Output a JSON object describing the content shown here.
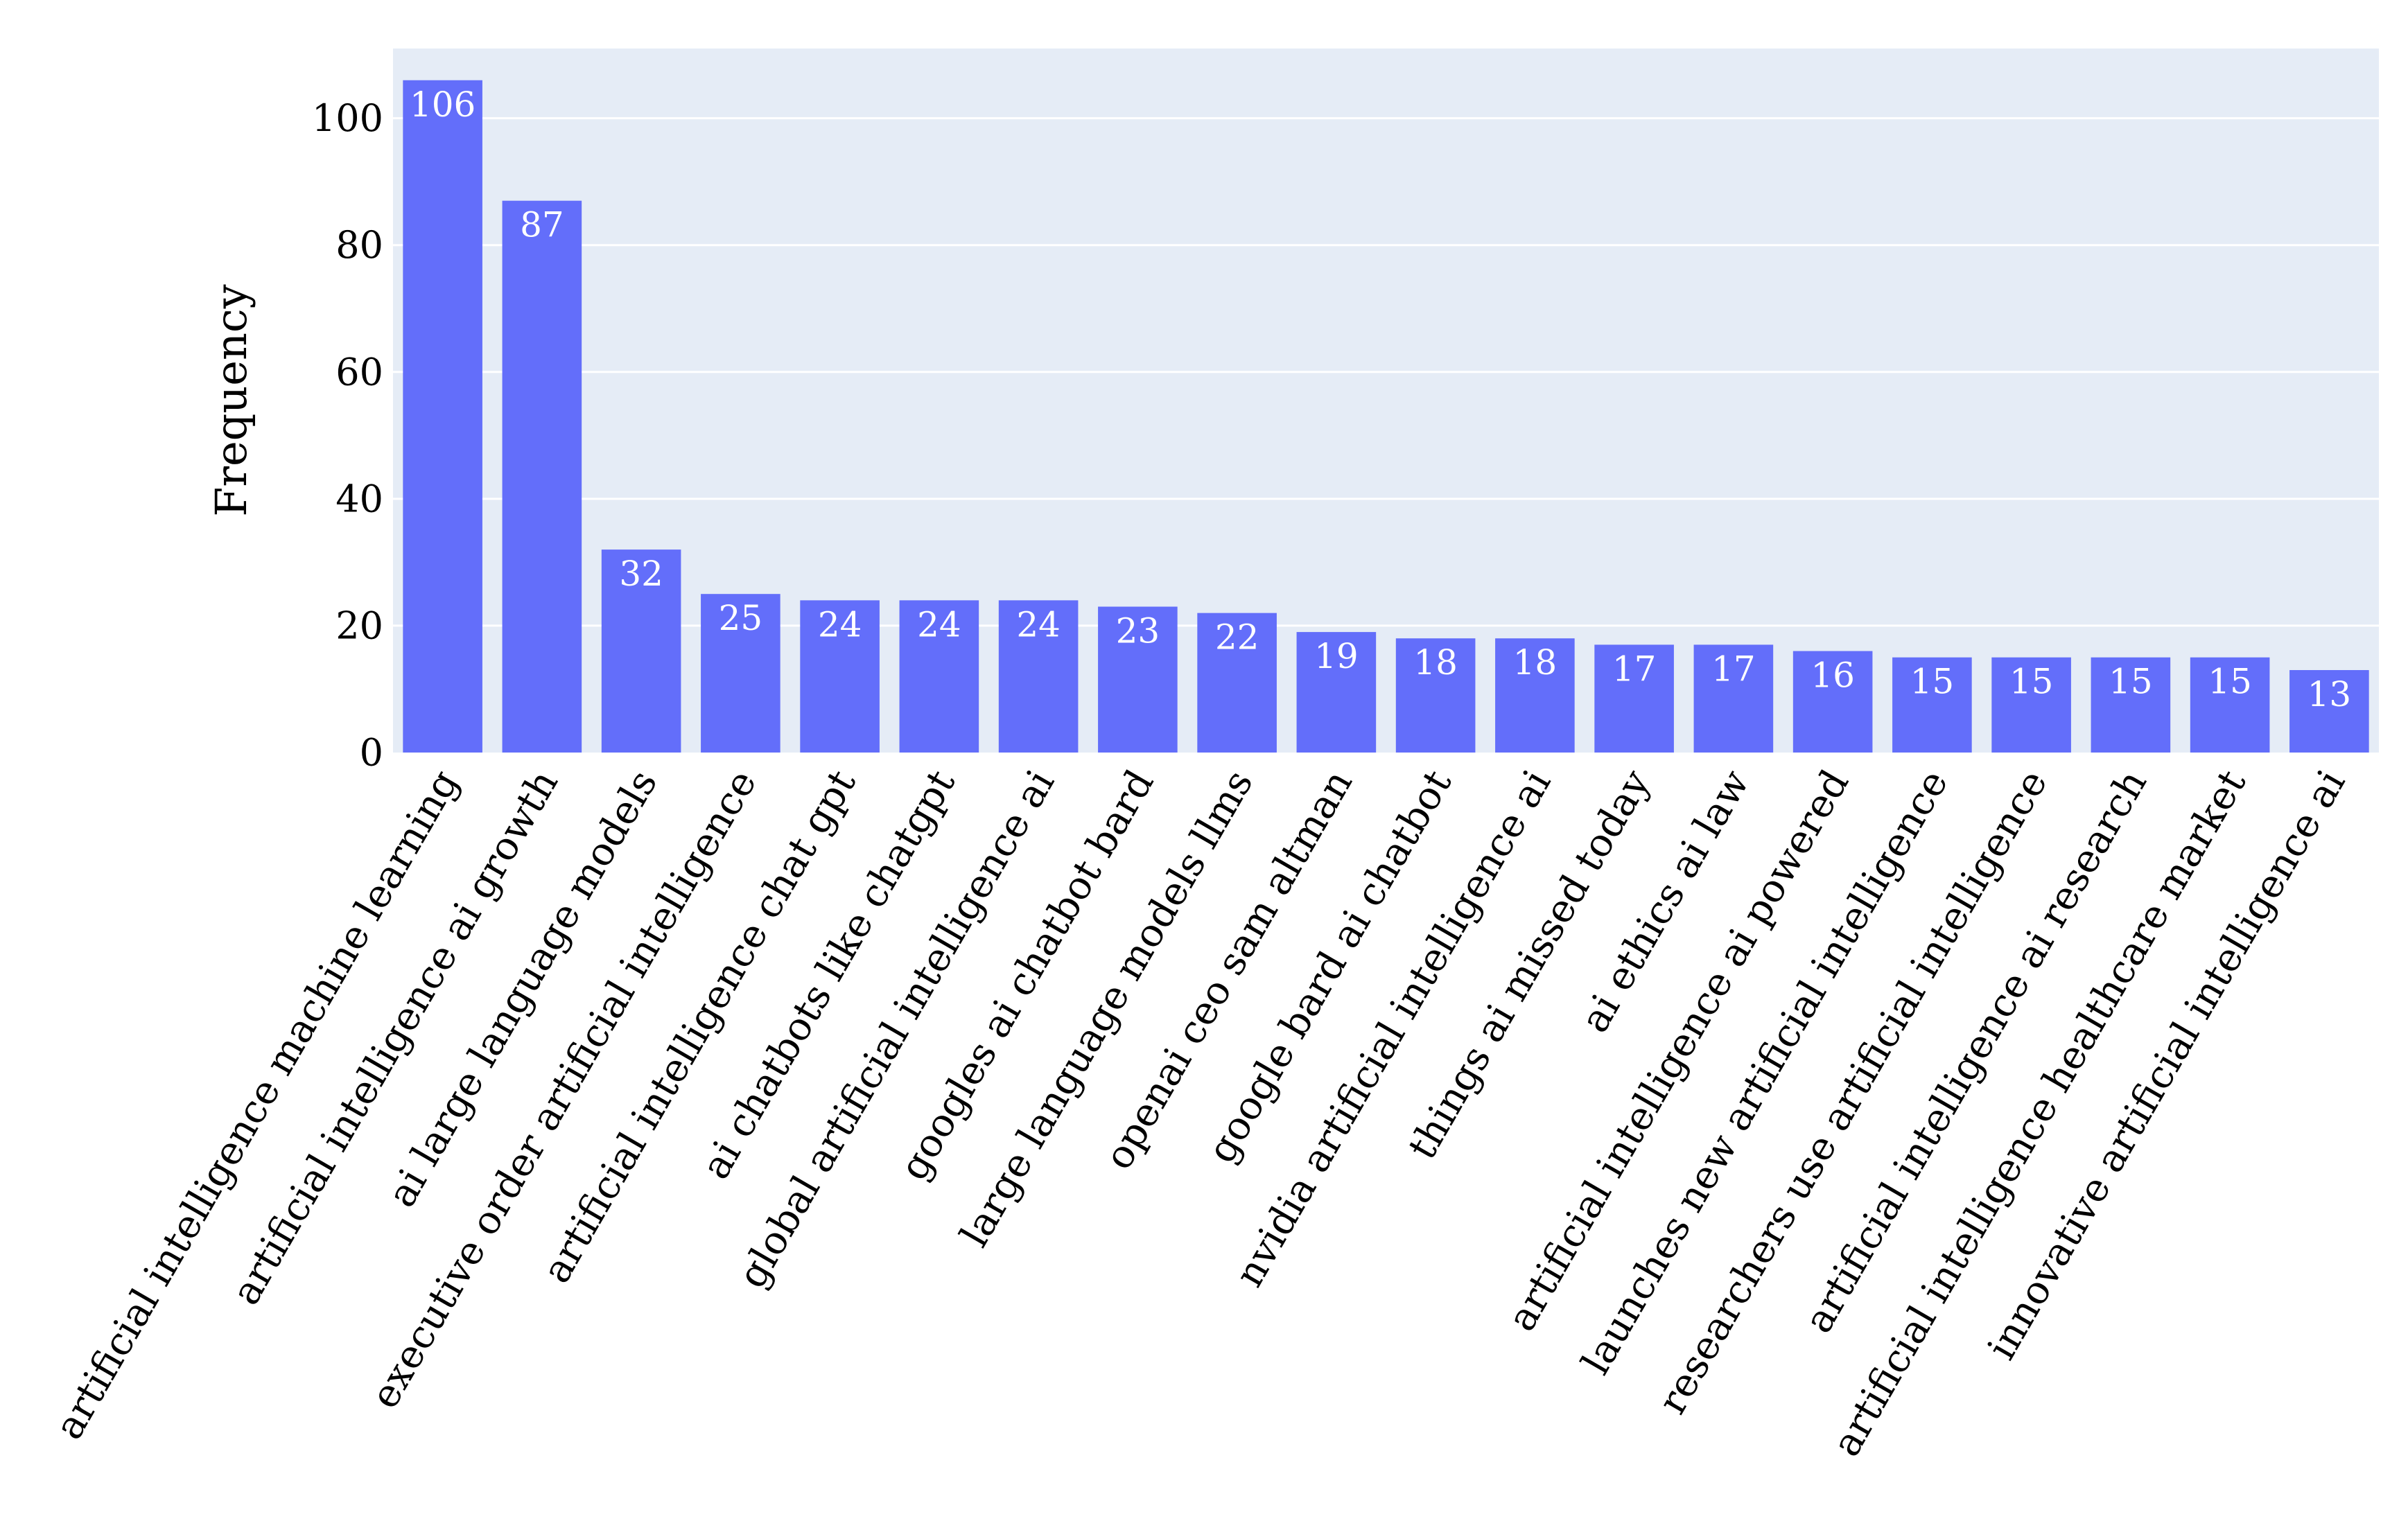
{
  "chart_data": {
    "type": "bar",
    "title": "",
    "xlabel": "",
    "ylabel": "Frequency",
    "ylim": [
      0,
      111
    ],
    "yticks": [
      0,
      20,
      40,
      60,
      80,
      100
    ],
    "grid": true,
    "show_data_labels": true,
    "colors": {
      "bar": "#636efa",
      "plot_background": "#e5ecf6",
      "gridline": "#ffffff",
      "data_label": "#ffffff",
      "text": "#000000"
    },
    "categories": [
      "artificial intelligence machine learning",
      "artificial intelligence ai growth",
      "ai large language models",
      "executive order artificial intelligence",
      "artificial intelligence chat gpt",
      "ai chatbots like chatgpt",
      "global artificial intelligence ai",
      "googles ai chatbot bard",
      "large language models llms",
      "openai ceo sam altman",
      "google bard ai chatbot",
      "nvidia artificial intelligence ai",
      "things ai missed today",
      "ai ethics ai law",
      "artificial intelligence ai powered",
      "launches new artificial intelligence",
      "researchers use artificial intelligence",
      "artificial intelligence ai research",
      "artificial intelligence healthcare market",
      "innovative artificial intelligence ai"
    ],
    "values": [
      106,
      87,
      32,
      25,
      24,
      24,
      24,
      23,
      22,
      19,
      18,
      18,
      17,
      17,
      16,
      15,
      15,
      15,
      15,
      13
    ]
  }
}
